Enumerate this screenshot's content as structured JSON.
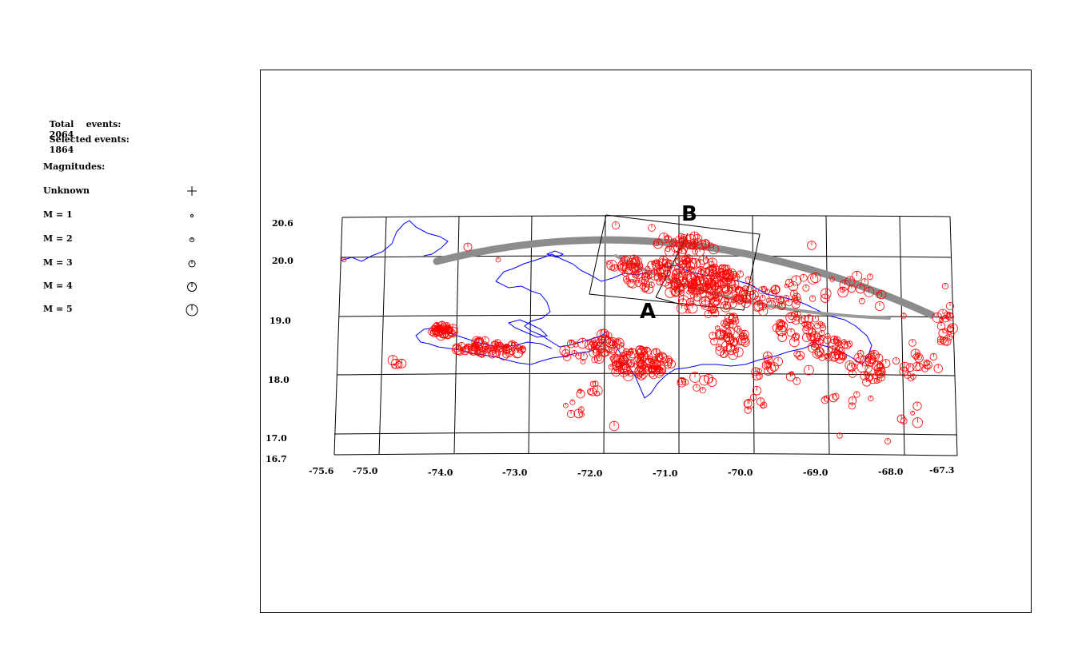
{
  "stats": {
    "total_label": "Total    events:",
    "total_value": "2064",
    "selected_label": "Selected events:",
    "selected_value": "1864"
  },
  "legend": {
    "title": "Magnitudes:",
    "items": [
      {
        "label": "Unknown",
        "symbol": "plus-icon"
      },
      {
        "label": "M = 1",
        "symbol": "circle-m1-icon"
      },
      {
        "label": "M = 2",
        "symbol": "circle-m2-icon"
      },
      {
        "label": "M = 3",
        "symbol": "circle-m3-icon"
      },
      {
        "label": "M = 4",
        "symbol": "circle-m4-icon"
      },
      {
        "label": "M = 5",
        "symbol": "circle-m5-icon"
      }
    ]
  },
  "map": {
    "lat_labels": [
      "20.6",
      "20.0",
      "19.0",
      "18.0",
      "17.0",
      "16.7"
    ],
    "lon_labels": [
      "-75.6",
      "-75.0",
      "-74.0",
      "-73.0",
      "-72.0",
      "-71.0",
      "-70.0",
      "-69.0",
      "-68.0",
      "-67.3"
    ],
    "profile_start_label": "A",
    "profile_end_label": "B",
    "colors": {
      "events": "#ff0000",
      "coastline": "#0000ff",
      "grid": "#000000",
      "trench": "#8c8c8c"
    }
  }
}
